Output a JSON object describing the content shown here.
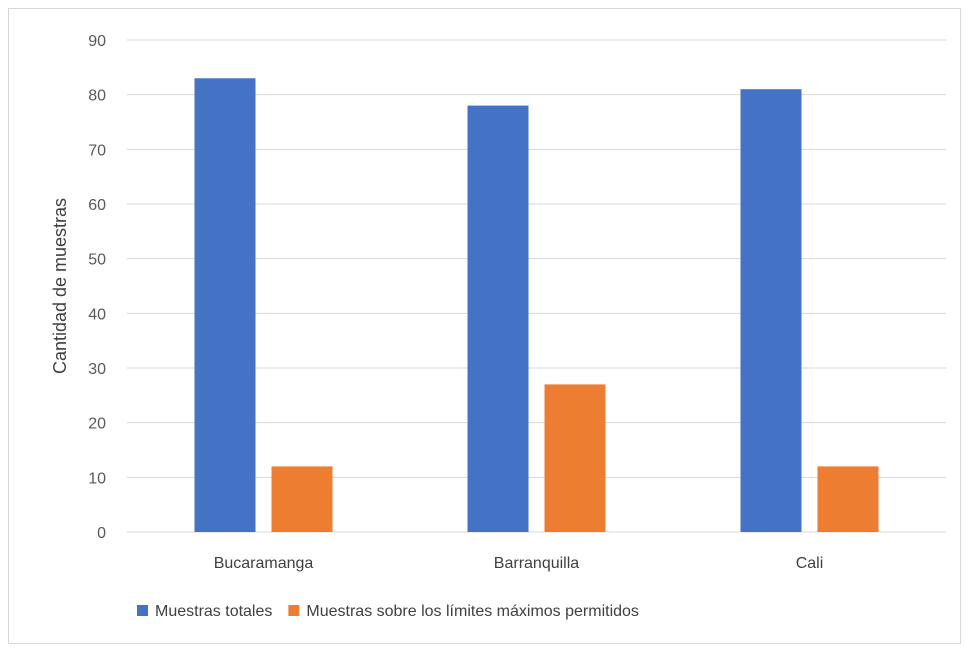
{
  "chart_data": {
    "type": "bar",
    "title": "",
    "xlabel": "",
    "ylabel": "Cantidad de muestras",
    "ylim": [
      0,
      90
    ],
    "yticks": [
      0,
      10,
      20,
      30,
      40,
      50,
      60,
      70,
      80,
      90
    ],
    "grid": true,
    "legend_position": "bottom",
    "categories": [
      "Bucaramanga",
      "Barranquilla",
      "Cali"
    ],
    "series": [
      {
        "name": "Muestras totales",
        "color": "#4472C4",
        "values": [
          83,
          78,
          81
        ]
      },
      {
        "name": "Muestras sobre los límites máximos permitidos",
        "color": "#ED7D31",
        "values": [
          12,
          27,
          12
        ]
      }
    ]
  }
}
